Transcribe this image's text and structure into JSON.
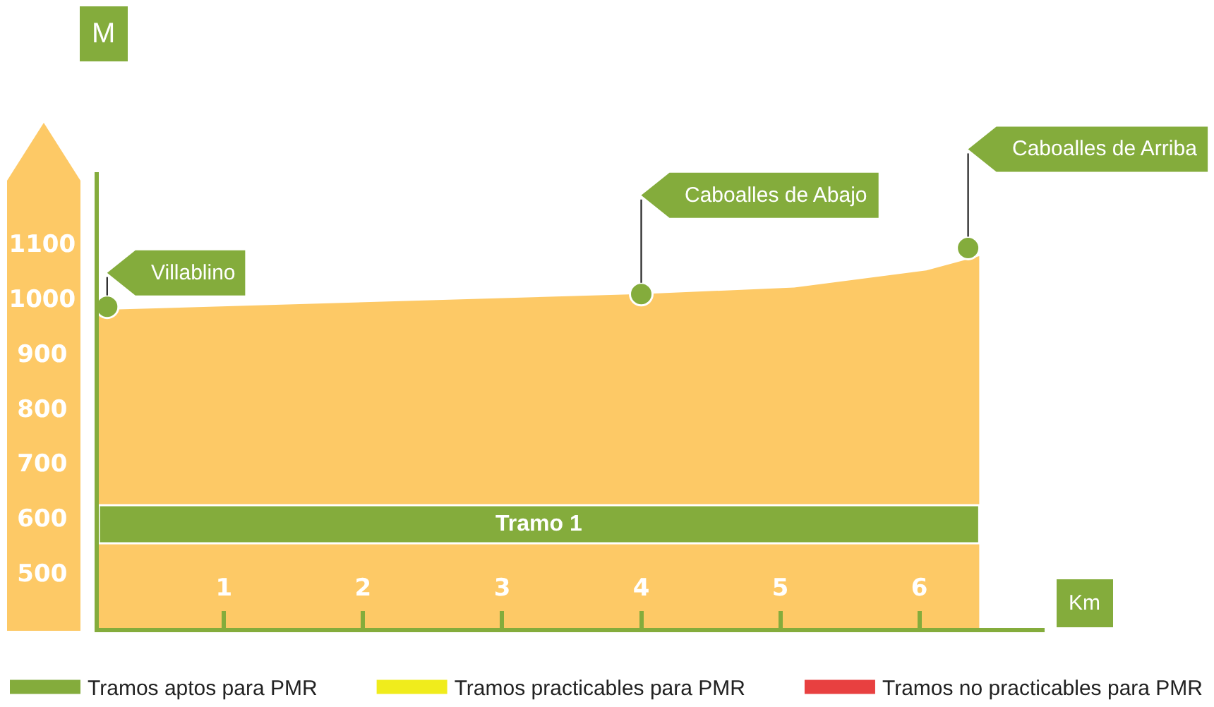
{
  "chart_data": {
    "type": "area",
    "xlabel": "Km",
    "ylabel": "M",
    "xlim": [
      0.1,
      6.9
    ],
    "xticks": [
      1,
      2,
      3,
      4,
      5,
      6
    ],
    "ylim": [
      400,
      1230
    ],
    "yticks": [
      500,
      600,
      700,
      800,
      900,
      1000,
      1100
    ],
    "grid": false,
    "legend": "bottom",
    "series": [
      {
        "type": "area",
        "color": "#fdc966",
        "x": [
          0.1,
          4.0,
          5.1,
          6.05,
          6.43
        ],
        "values": [
          979,
          1008,
          1020,
          1051,
          1077
        ]
      },
      {
        "type": "scatter",
        "color": "#84ac3c",
        "marker": "circle",
        "x": [
          0.16,
          4.0,
          6.35
        ],
        "values": [
          985,
          1008,
          1092
        ]
      },
      {
        "type": "line",
        "name": "Tramos aptos para PMR",
        "color": "#84ac3c",
        "values": [
          null
        ]
      },
      {
        "type": "line",
        "name": "Tramos practicables para PMR",
        "color": "#f0ec1c",
        "values": [
          null
        ]
      },
      {
        "type": "line",
        "name": "Tramos no practicables para PMR",
        "color": "#e84040",
        "values": [
          null
        ]
      }
    ],
    "bands": [
      {
        "axis": "x",
        "from": 0.1,
        "to": 6.43,
        "label": "Tramo 1",
        "color": "#84ac3c"
      }
    ],
    "annotations": [
      "Villablino",
      "Caboalles de Abajo",
      "Caboalles de Arriba"
    ]
  }
}
